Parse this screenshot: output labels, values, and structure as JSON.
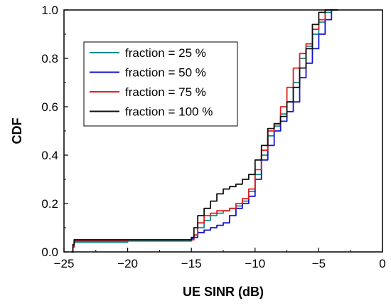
{
  "chart_data": {
    "type": "line",
    "xlabel": "UE SINR (dB)",
    "ylabel": "CDF",
    "xlim": [
      -25,
      0
    ],
    "ylim": [
      0.0,
      1.0
    ],
    "x_ticks": [
      -25,
      -20,
      -15,
      -10,
      -5,
      0
    ],
    "x_tick_labels": [
      "−25",
      "−20",
      "−15",
      "−10",
      "−5",
      "0"
    ],
    "y_ticks": [
      0.0,
      0.2,
      0.4,
      0.6,
      0.8,
      1.0
    ],
    "y_tick_labels": [
      "0.0",
      "0.2",
      "0.4",
      "0.6",
      "0.8",
      "1.0"
    ],
    "grid": false,
    "legend_position": "upper-left",
    "series": [
      {
        "name": "fraction = 25 %",
        "color": "#1a8a8a",
        "x": [
          -24.4,
          -24.3,
          -24.2,
          -20,
          -15,
          -14.8,
          -14.5,
          -14,
          -13.5,
          -13,
          -12.5,
          -12,
          -11.5,
          -11,
          -10.5,
          -10,
          -9.5,
          -9,
          -8.5,
          -8,
          -7.5,
          -7,
          -6.5,
          -6,
          -5.5,
          -5,
          -4.5,
          -4,
          -3.5
        ],
        "y": [
          0.0,
          0.02,
          0.04,
          0.045,
          0.05,
          0.07,
          0.1,
          0.13,
          0.15,
          0.16,
          0.17,
          0.18,
          0.19,
          0.21,
          0.25,
          0.32,
          0.4,
          0.48,
          0.52,
          0.57,
          0.62,
          0.7,
          0.8,
          0.85,
          0.9,
          0.95,
          0.99,
          1.0,
          1.0
        ]
      },
      {
        "name": "fraction = 50 %",
        "color": "#1515d0",
        "x": [
          -24.4,
          -24.3,
          -24.2,
          -20,
          -15,
          -14.8,
          -14.5,
          -14,
          -13.5,
          -13,
          -12.5,
          -12,
          -11.5,
          -11,
          -10.5,
          -10,
          -9.5,
          -9,
          -8.5,
          -8,
          -7.5,
          -7,
          -6.5,
          -6,
          -5.5,
          -5,
          -4.5,
          -4,
          -3.5
        ],
        "y": [
          0.0,
          0.03,
          0.05,
          0.05,
          0.055,
          0.06,
          0.08,
          0.09,
          0.1,
          0.11,
          0.12,
          0.15,
          0.18,
          0.2,
          0.23,
          0.3,
          0.38,
          0.44,
          0.5,
          0.54,
          0.58,
          0.62,
          0.72,
          0.78,
          0.84,
          0.9,
          0.96,
          1.0,
          1.0
        ]
      },
      {
        "name": "fraction = 75 %",
        "color": "#e02020",
        "x": [
          -24.4,
          -24.3,
          -24.2,
          -20,
          -15,
          -14.8,
          -14.5,
          -14,
          -13.5,
          -13,
          -12.5,
          -12,
          -11.5,
          -11,
          -10.5,
          -10,
          -9.5,
          -9,
          -8.5,
          -8,
          -7.5,
          -7,
          -6.5,
          -6,
          -5.5,
          -5,
          -4.5,
          -4,
          -3.5
        ],
        "y": [
          0.0,
          0.02,
          0.045,
          0.05,
          0.05,
          0.07,
          0.12,
          0.15,
          0.16,
          0.17,
          0.17,
          0.18,
          0.2,
          0.22,
          0.26,
          0.34,
          0.42,
          0.5,
          0.53,
          0.6,
          0.68,
          0.76,
          0.82,
          0.86,
          0.92,
          0.96,
          1.0,
          1.0,
          1.0
        ]
      },
      {
        "name": "fraction = 100 %",
        "color": "#111111",
        "x": [
          -24.4,
          -24.3,
          -24.2,
          -20,
          -15,
          -14.8,
          -14.5,
          -14,
          -13.5,
          -13,
          -12.5,
          -12,
          -11.5,
          -11,
          -10.5,
          -10,
          -9.5,
          -9,
          -8.5,
          -8,
          -7.5,
          -7,
          -6.5,
          -6,
          -5.5,
          -5,
          -4.5,
          -4,
          -3.5
        ],
        "y": [
          0.0,
          0.03,
          0.05,
          0.05,
          0.06,
          0.1,
          0.15,
          0.18,
          0.21,
          0.24,
          0.26,
          0.27,
          0.28,
          0.3,
          0.32,
          0.38,
          0.44,
          0.51,
          0.53,
          0.56,
          0.62,
          0.68,
          0.76,
          0.84,
          0.94,
          0.99,
          1.0,
          1.0,
          1.0
        ]
      }
    ]
  }
}
